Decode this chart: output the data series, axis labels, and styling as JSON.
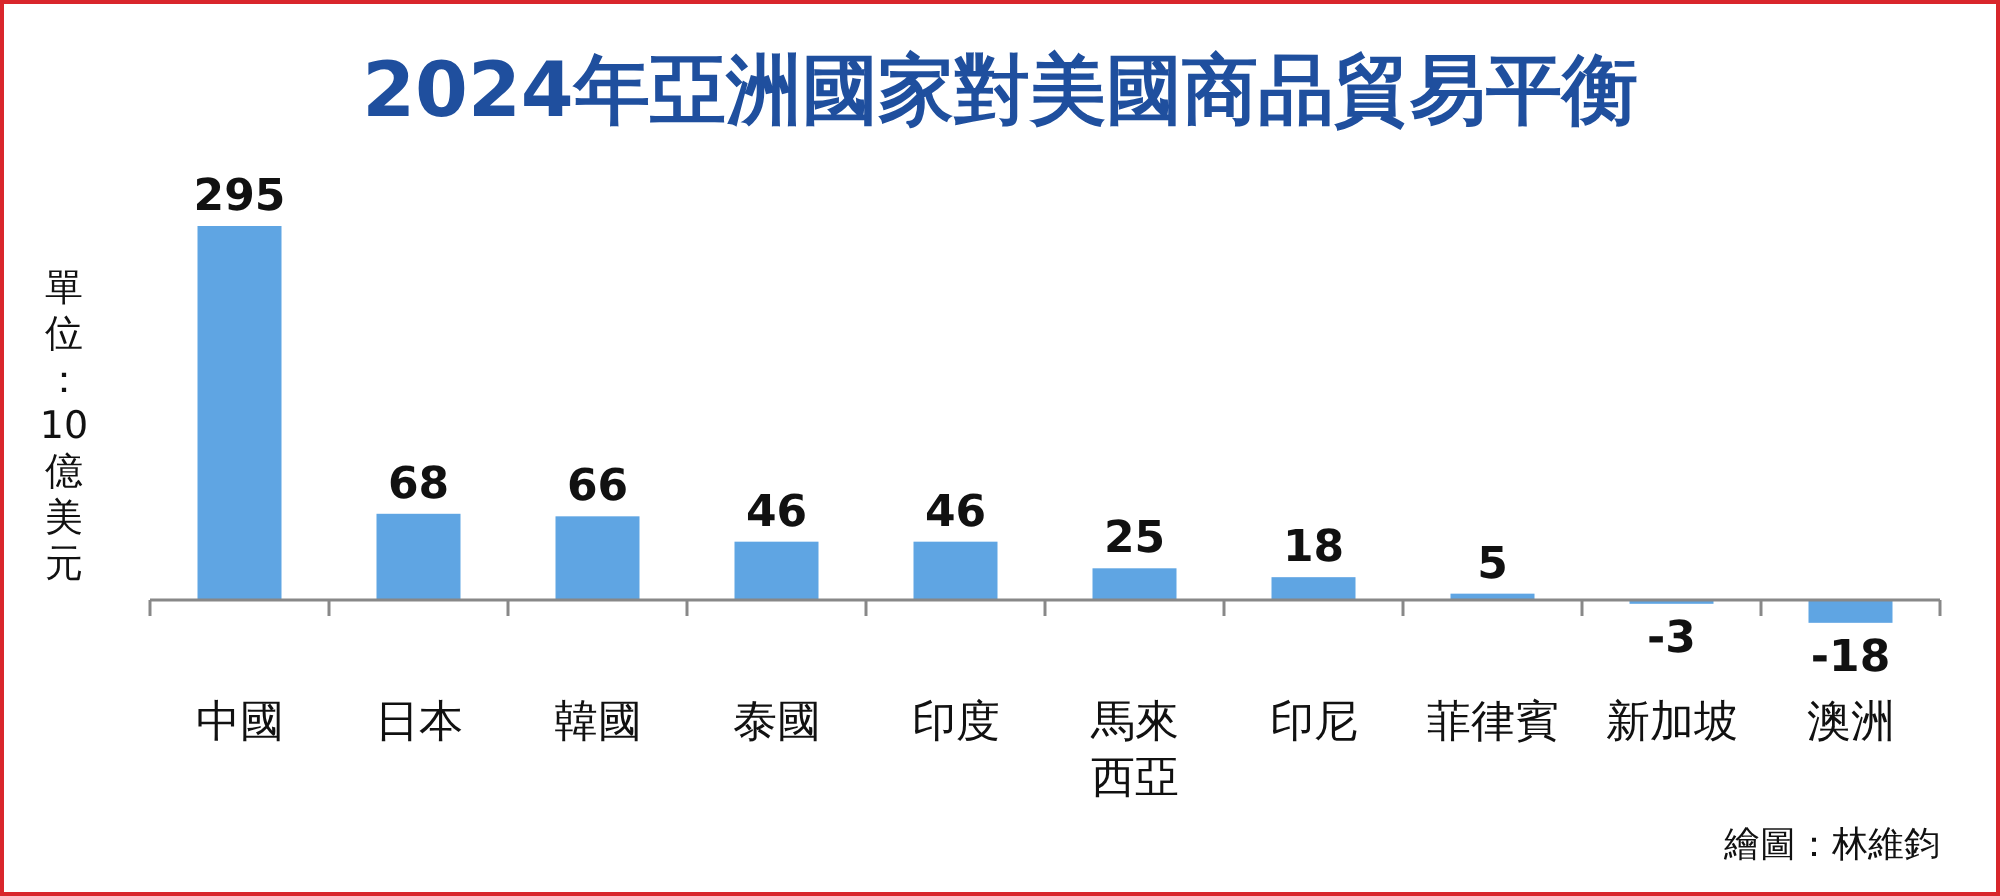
{
  "chart_data": {
    "type": "bar",
    "title": "2024年亞洲國家對美國商品貿易平衡",
    "ylabel": "單位：10億美元",
    "categories": [
      "中國",
      "日本",
      "韓國",
      "泰國",
      "印度",
      "馬來西亞",
      "印尼",
      "菲律賓",
      "新加坡",
      "澳洲"
    ],
    "values": [
      295,
      68,
      66,
      46,
      46,
      25,
      18,
      5,
      -3,
      -18
    ],
    "color": "#5fa5e3",
    "data_labels": true,
    "annotations": [
      "繪圖：林維鈞"
    ]
  }
}
